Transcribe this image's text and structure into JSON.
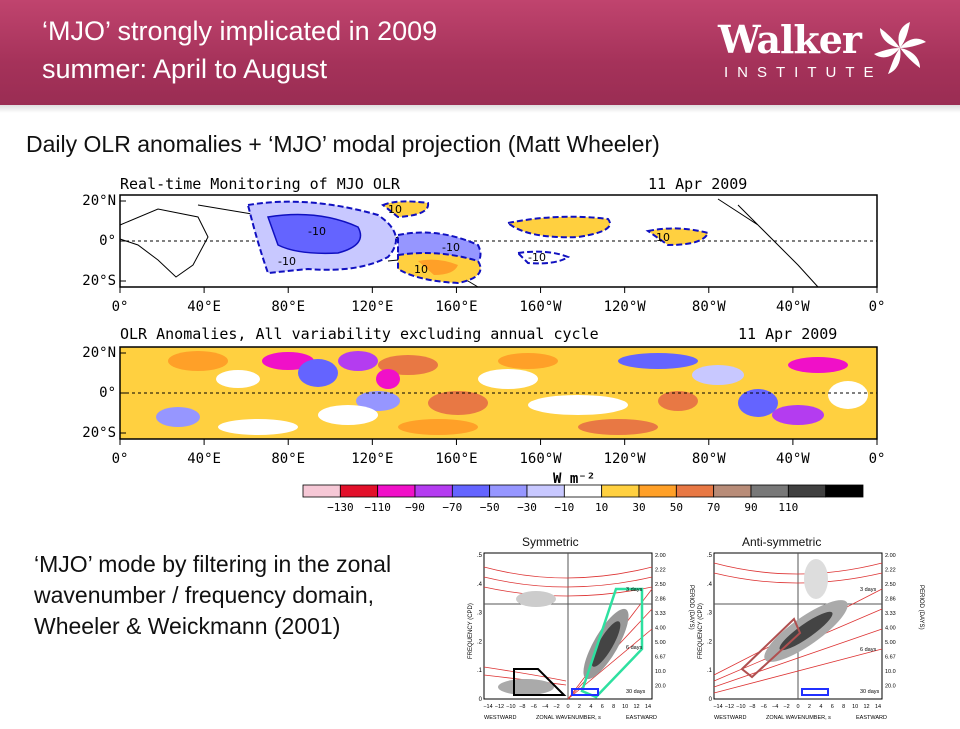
{
  "header": {
    "title_line1": "‘MJO’ strongly implicated in 2009",
    "title_line2": "summer: April to August",
    "logo_word": "Walker",
    "logo_sub": "INSTITUTE",
    "bg_color": "#a5325a"
  },
  "subtitle": "Daily OLR anomalies + ‘MJO’ modal projection (Matt Wheeler)",
  "top_map": {
    "title": "Real-time Monitoring of MJO OLR",
    "date": "11 Apr 2009",
    "lat_labels": [
      "20°N",
      "0°",
      "20°S"
    ],
    "lon_labels": [
      "0°",
      "40°E",
      "80°E",
      "120°E",
      "160°E",
      "160°W",
      "120°W",
      "80°W",
      "40°W",
      "0°"
    ],
    "contour_labels": [
      "-10",
      "-10",
      "10",
      "-10",
      "10",
      "-10",
      "10"
    ]
  },
  "bottom_map": {
    "title": "OLR Anomalies, All variability excluding annual cycle",
    "date": "11 Apr 2009",
    "lat_labels": [
      "20°N",
      "0°",
      "20°S"
    ],
    "lon_labels": [
      "0°",
      "40°E",
      "80°E",
      "120°E",
      "160°E",
      "160°W",
      "120°W",
      "80°W",
      "40°W",
      "0°"
    ],
    "units": "W m⁻²"
  },
  "colorbar": {
    "labels": [
      "−130",
      "−110",
      "−90",
      "−70",
      "−50",
      "−30",
      "−10",
      "10",
      "30",
      "50",
      "70",
      "90",
      "110"
    ],
    "colors": [
      "#f6c8d6",
      "#e2102a",
      "#f010c8",
      "#b43cf0",
      "#6464ff",
      "#9696ff",
      "#c8c8ff",
      "#ffffff",
      "#ffd040",
      "#ffa028",
      "#e87844",
      "#b88c78",
      "#787878",
      "#404040",
      "#000000"
    ]
  },
  "description": "‘MJO’ mode by filtering in the zonal wavenumber / frequency domain, Wheeler & Weickmann (2001)",
  "spectra": [
    {
      "label": "Symmetric",
      "y_axis_label": "FREQUENCY (CPD)",
      "y_ticks": [
        ".5",
        ".4",
        ".3",
        ".2",
        ".1",
        "0"
      ],
      "period_label": "PERIOD (DAYS)",
      "period_ticks": [
        "2.00",
        "2.22",
        "2.50",
        "2.86",
        "3.33",
        "4.00",
        "5.00",
        "6.67",
        "10.0",
        "20.0"
      ],
      "x_ticks": [
        "−14",
        "−12",
        "−10",
        "−8",
        "−6",
        "−4",
        "−2",
        "0",
        "2",
        "4",
        "6",
        "8",
        "10",
        "12",
        "14"
      ],
      "x_label": "ZONAL WAVENUMBER, s",
      "westward": "WESTWARD",
      "eastward": "EASTWARD",
      "day_labels": [
        "3 days",
        "6 days",
        "30 days"
      ]
    },
    {
      "label": "Anti-symmetric",
      "y_axis_label": "FREQUENCY (CPD)",
      "y_ticks": [
        ".5",
        ".4",
        ".3",
        ".2",
        ".1",
        "0"
      ],
      "period_label": "PERIOD (DAYS)",
      "period_ticks": [
        "2.00",
        "2.22",
        "2.50",
        "2.86",
        "3.33",
        "4.00",
        "5.00",
        "6.67",
        "10.0",
        "20.0"
      ],
      "x_ticks": [
        "−14",
        "−12",
        "−10",
        "−8",
        "−6",
        "−4",
        "−2",
        "0",
        "2",
        "4",
        "6",
        "8",
        "10",
        "12",
        "14"
      ],
      "x_label": "ZONAL WAVENUMBER, s",
      "westward": "WESTWARD",
      "eastward": "EASTWARD",
      "day_labels": [
        "3 days",
        "6 days",
        "30 days"
      ]
    }
  ]
}
